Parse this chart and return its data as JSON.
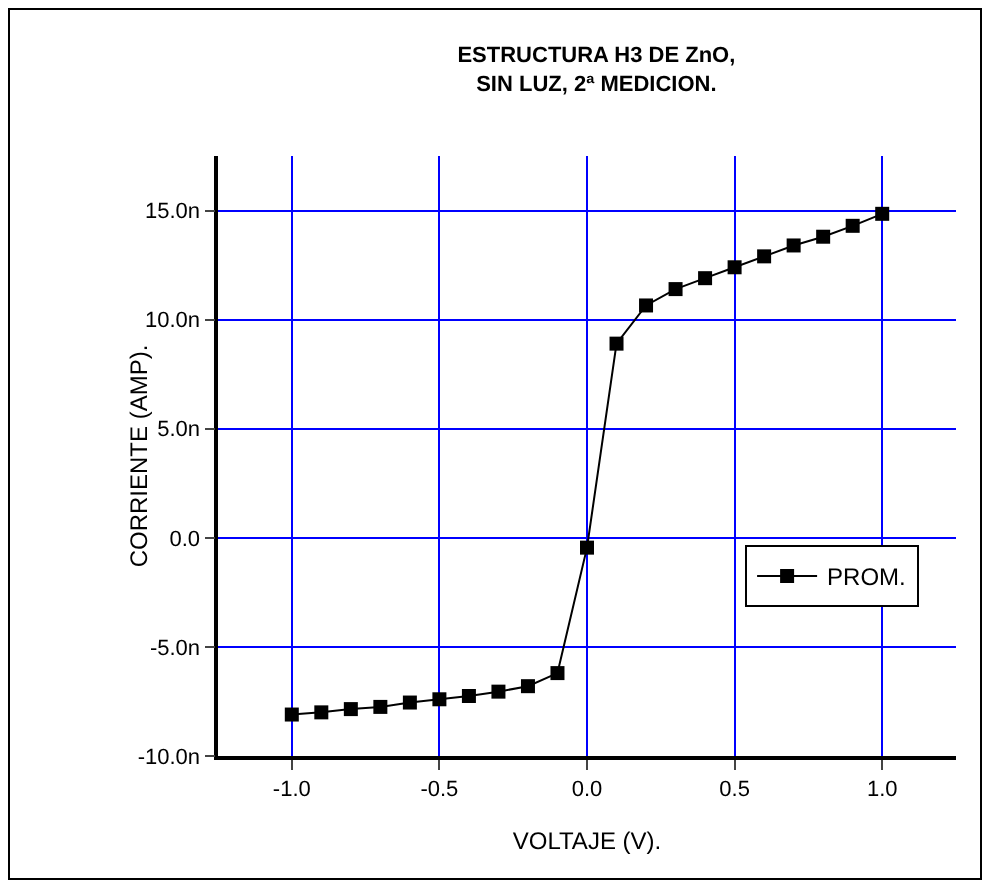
{
  "chart_data": {
    "type": "line",
    "title": "ESTRUCTURA H3 DE ZnO,\nSIN LUZ, 2ª MEDICION.",
    "xlabel": "VOLTAJE (V).",
    "ylabel": "CORRIENTE (AMP).",
    "x": [
      -1.0,
      -0.9,
      -0.8,
      -0.7,
      -0.6,
      -0.5,
      -0.4,
      -0.3,
      -0.2,
      -0.1,
      0.0,
      0.1,
      0.2,
      0.3,
      0.4,
      0.5,
      0.6,
      0.7,
      0.8,
      0.9,
      1.0
    ],
    "series": [
      {
        "name": "PROM.",
        "color": "#000000",
        "values": [
          -8.1,
          -8.0,
          -7.85,
          -7.75,
          -7.55,
          -7.4,
          -7.25,
          -7.05,
          -6.8,
          -6.2,
          -0.45,
          8.9,
          10.65,
          11.4,
          11.9,
          12.4,
          12.9,
          13.4,
          13.8,
          14.3,
          14.85
        ]
      }
    ],
    "xlim": [
      -1.25,
      1.25
    ],
    "xticks": [
      {
        "value": -1,
        "label": "-1.0"
      },
      {
        "value": -0.5,
        "label": "-0.5"
      },
      {
        "value": 0,
        "label": "0.0"
      },
      {
        "value": 0.5,
        "label": "0.5"
      },
      {
        "value": 1,
        "label": "1.0"
      }
    ],
    "ylim": [
      -10,
      17.5
    ],
    "yticks": [
      {
        "value": -10,
        "label": "-10.0n"
      },
      {
        "value": -5,
        "label": "-5.0n"
      },
      {
        "value": 0,
        "label": "0.0"
      },
      {
        "value": 5,
        "label": "5.0n"
      },
      {
        "value": 10,
        "label": "10.0n"
      },
      {
        "value": 15,
        "label": "15.0n"
      }
    ],
    "grid": true,
    "legend": "bottom right",
    "marker": "square",
    "line_style": "solid"
  }
}
